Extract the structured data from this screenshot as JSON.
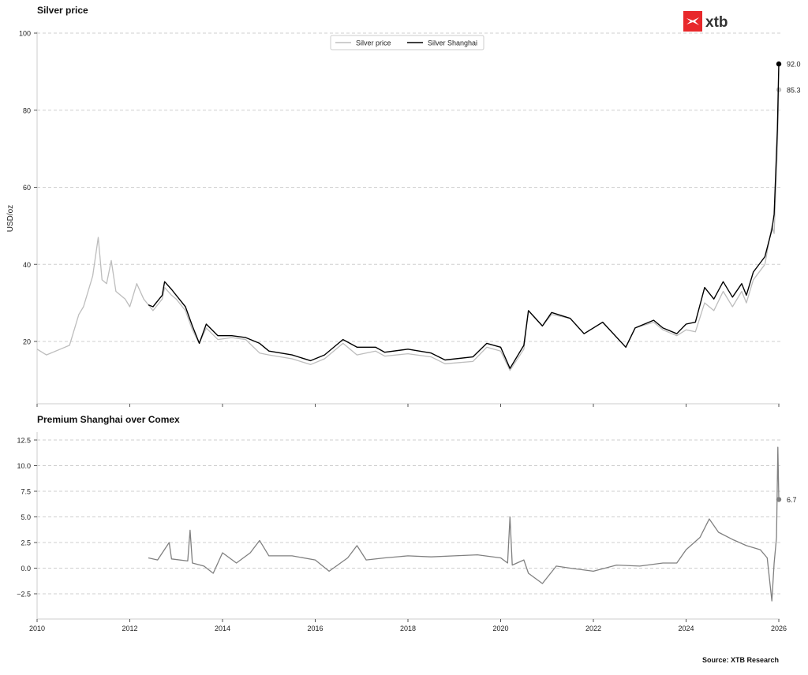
{
  "brand": {
    "logo_text": "xtb",
    "logo_color": "#e8282b"
  },
  "source": "Source: XTB Research",
  "chart_data": [
    {
      "type": "line",
      "title": "Silver price",
      "ylabel": "USD/oz",
      "xlabel": "",
      "xlim": [
        2010,
        2026
      ],
      "ylim": [
        4,
        100
      ],
      "yticks": [
        20,
        40,
        60,
        80,
        100
      ],
      "xticks": [
        2010,
        2012,
        2014,
        2016,
        2018,
        2020,
        2022,
        2024,
        2026
      ],
      "grid": "horizontal dashed",
      "legend": "top-center",
      "series": [
        {
          "name": "Silver price",
          "color": "#bdbdbd",
          "x": [
            2010.0,
            2010.2,
            2010.5,
            2010.7,
            2010.9,
            2011.0,
            2011.2,
            2011.32,
            2011.4,
            2011.5,
            2011.6,
            2011.7,
            2011.9,
            2012.0,
            2012.15,
            2012.3,
            2012.5,
            2012.7,
            2012.75,
            2012.9,
            2013.0,
            2013.2,
            2013.35,
            2013.5,
            2013.65,
            2013.9,
            2014.2,
            2014.5,
            2014.8,
            2015.0,
            2015.5,
            2015.9,
            2016.2,
            2016.5,
            2016.6,
            2016.9,
            2017.3,
            2017.5,
            2018.0,
            2018.5,
            2018.8,
            2019.4,
            2019.7,
            2020.0,
            2020.2,
            2020.5,
            2020.6,
            2020.9,
            2021.1,
            2021.5,
            2021.8,
            2022.2,
            2022.7,
            2022.9,
            2023.3,
            2023.5,
            2023.8,
            2024.0,
            2024.2,
            2024.4,
            2024.6,
            2024.8,
            2025.0,
            2025.2,
            2025.3,
            2025.45,
            2025.7,
            2025.85,
            2025.9,
            2025.97,
            2026.0
          ],
          "y": [
            18,
            16.5,
            18,
            19,
            27,
            29,
            37,
            47,
            36,
            35,
            41,
            33,
            31,
            29,
            35,
            31,
            28,
            31,
            34,
            32,
            31,
            28,
            23,
            19.5,
            23.5,
            20.5,
            21,
            20.5,
            17,
            16.5,
            15.5,
            14,
            15.5,
            18.5,
            19.5,
            16.5,
            17.5,
            16.2,
            16.8,
            16,
            14.2,
            14.8,
            18.5,
            17.5,
            12.5,
            18,
            28,
            24,
            27,
            26,
            22,
            25,
            18.5,
            23.5,
            25,
            23,
            21.5,
            23,
            22.5,
            30,
            28,
            33,
            29,
            33,
            30,
            36,
            40,
            50,
            48,
            70,
            85.3
          ],
          "end_label": "85.3"
        },
        {
          "name": "Silver Shanghai",
          "color": "#000000",
          "x": [
            2012.4,
            2012.5,
            2012.7,
            2012.75,
            2012.9,
            2013.0,
            2013.2,
            2013.35,
            2013.5,
            2013.65,
            2013.9,
            2014.2,
            2014.5,
            2014.8,
            2015.0,
            2015.5,
            2015.9,
            2016.2,
            2016.5,
            2016.6,
            2016.9,
            2017.3,
            2017.5,
            2018.0,
            2018.5,
            2018.8,
            2019.4,
            2019.7,
            2020.0,
            2020.2,
            2020.5,
            2020.6,
            2020.9,
            2021.1,
            2021.5,
            2021.8,
            2022.2,
            2022.7,
            2022.9,
            2023.3,
            2023.5,
            2023.8,
            2024.0,
            2024.2,
            2024.4,
            2024.6,
            2024.8,
            2025.0,
            2025.2,
            2025.3,
            2025.45,
            2025.7,
            2025.85,
            2025.9,
            2025.97,
            2026.0
          ],
          "y": [
            29.5,
            29,
            32,
            35.5,
            33.5,
            32,
            29,
            24,
            19.5,
            24.5,
            21.5,
            21.5,
            21,
            19.5,
            17.5,
            16.5,
            15,
            16.5,
            19.5,
            20.5,
            18.5,
            18.5,
            17.2,
            18,
            17,
            15.2,
            16,
            19.5,
            18.5,
            13,
            19,
            28,
            24,
            27.5,
            26,
            22,
            25,
            18.5,
            23.5,
            25.5,
            23.5,
            22,
            24.5,
            25,
            34,
            31,
            35.5,
            31.5,
            35,
            32,
            38,
            42,
            49,
            53,
            75,
            92.0
          ],
          "end_label": "92.0"
        }
      ]
    },
    {
      "type": "line",
      "title": "Premium Shanghai over Comex",
      "xlim": [
        2010,
        2026
      ],
      "ylim": [
        -5,
        13.3
      ],
      "yticks": [
        -2.5,
        0.0,
        2.5,
        5.0,
        7.5,
        10.0,
        12.5
      ],
      "ytick_labels": [
        "−2.5",
        "0.0",
        "2.5",
        "5.0",
        "7.5",
        "10.0",
        "12.5"
      ],
      "xticks": [
        2010,
        2012,
        2014,
        2016,
        2018,
        2020,
        2022,
        2024,
        2026
      ],
      "xtick_labels": [
        "2010",
        "2012",
        "2014",
        "2016",
        "2018",
        "2020",
        "2022",
        "2024",
        "2026"
      ],
      "grid": "horizontal dashed",
      "series": [
        {
          "color": "#808080",
          "x": [
            2012.4,
            2012.6,
            2012.85,
            2012.9,
            2013.25,
            2013.3,
            2013.35,
            2013.6,
            2013.8,
            2014.0,
            2014.3,
            2014.6,
            2014.8,
            2015.0,
            2015.5,
            2016.0,
            2016.3,
            2016.7,
            2016.9,
            2017.1,
            2017.5,
            2018.0,
            2018.5,
            2019.0,
            2019.5,
            2020.0,
            2020.15,
            2020.2,
            2020.25,
            2020.5,
            2020.6,
            2020.9,
            2021.2,
            2021.5,
            2022.0,
            2022.5,
            2023.0,
            2023.5,
            2023.8,
            2024.0,
            2024.3,
            2024.5,
            2024.7,
            2025.0,
            2025.3,
            2025.6,
            2025.75,
            2025.85,
            2025.9,
            2025.95,
            2025.98,
            2026.0
          ],
          "y": [
            1.0,
            0.8,
            2.5,
            0.9,
            0.7,
            3.7,
            0.5,
            0.2,
            -0.5,
            1.5,
            0.5,
            1.5,
            2.7,
            1.2,
            1.2,
            0.8,
            -0.3,
            1.0,
            2.2,
            0.8,
            1.0,
            1.2,
            1.1,
            1.2,
            1.3,
            1.0,
            0.5,
            5.0,
            0.3,
            0.8,
            -0.5,
            -1.5,
            0.2,
            0.0,
            -0.3,
            0.3,
            0.2,
            0.5,
            0.5,
            1.8,
            3.0,
            4.8,
            3.5,
            2.8,
            2.2,
            1.8,
            1.0,
            -3.2,
            0.5,
            3.0,
            11.8,
            6.7
          ],
          "end_label": "6.7"
        }
      ]
    }
  ]
}
